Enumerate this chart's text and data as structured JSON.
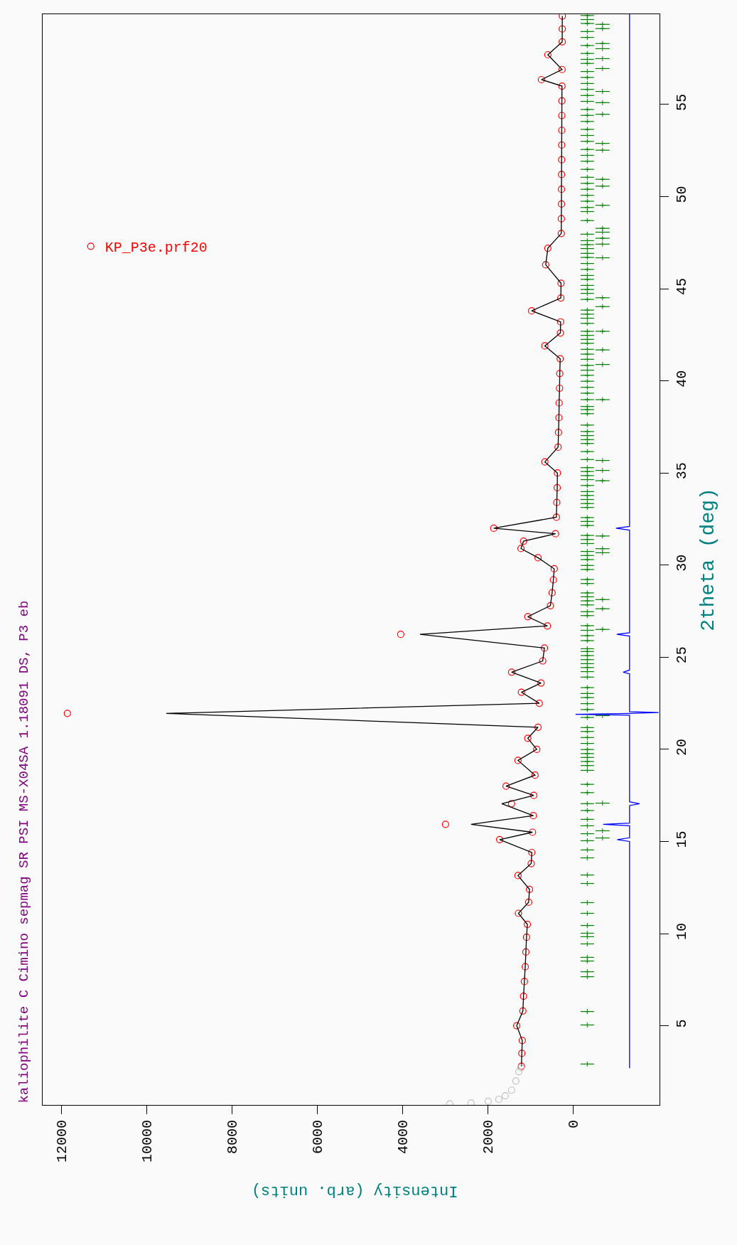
{
  "chart_data": {
    "type": "scatter",
    "title": "kaliophilite C Cimino sepmag SR PSI MS-X04SA 1.18091 DS, P3 eb",
    "xlabel": "Intensity (arb. units)",
    "ylabel": "2theta (deg)",
    "legend": "top left",
    "xlim": [
      12450,
      -2020
    ],
    "ylim": [
      0.7,
      59.9
    ],
    "xticks": [
      0,
      2000,
      4000,
      6000,
      8000,
      10000,
      12000
    ],
    "yticks": [
      5,
      10,
      15,
      20,
      25,
      30,
      35,
      40,
      45,
      50,
      55
    ],
    "series": [
      {
        "name": "KP_P3e.prf20",
        "marker": "circle",
        "color": "#ff0000",
        "x": [
          1220,
          1210,
          1200,
          1330,
          1185,
          1170,
          1150,
          1130,
          1115,
          1100,
          1080,
          1290,
          1050,
          1030,
          1300,
          990,
          975,
          1730,
          960,
          3000,
          940,
          1450,
          930,
          1580,
          900,
          1300,
          860,
          1070,
          830,
          11870,
          800,
          1220,
          760,
          1450,
          720,
          680,
          4050,
          610,
          1070,
          540,
          500,
          470,
          450,
          830,
          1230,
          1170,
          420,
          1870,
          400,
          390,
          380,
          375,
          670,
          360,
          350,
          340,
          335,
          325,
          320,
          310,
          670,
          305,
          300,
          980,
          295,
          290,
          650,
          600,
          285,
          283,
          280,
          280,
          278,
          276,
          275,
          273,
          272,
          270,
          268,
          750,
          266,
          600,
          263,
          262,
          260
        ],
        "values": [
          2.8,
          3.5,
          4.2,
          5.0,
          5.8,
          6.6,
          7.4,
          8.2,
          9.0,
          9.8,
          10.5,
          11.1,
          11.7,
          12.4,
          13.15,
          13.8,
          14.4,
          15.1,
          15.5,
          15.93,
          16.4,
          17.05,
          17.5,
          18.0,
          18.6,
          19.4,
          20.0,
          20.6,
          21.2,
          21.95,
          22.5,
          23.1,
          23.6,
          24.19,
          24.8,
          25.5,
          26.24,
          26.7,
          27.2,
          27.8,
          28.5,
          29.2,
          29.8,
          30.4,
          30.9,
          31.3,
          31.7,
          32.0,
          32.6,
          33.4,
          34.2,
          35.0,
          35.6,
          36.4,
          37.2,
          38.0,
          38.8,
          39.6,
          40.4,
          41.2,
          41.9,
          42.6,
          43.2,
          43.8,
          44.5,
          45.3,
          46.3,
          47.2,
          48.0,
          48.8,
          49.6,
          50.4,
          51.2,
          52.0,
          52.8,
          53.6,
          54.4,
          55.2,
          56.0,
          56.35,
          56.9,
          57.7,
          58.4,
          59.1,
          59.8
        ]
      },
      {
        "type": "line",
        "color": "#000000",
        "x": [
          1220,
          1210,
          1200,
          1330,
          1185,
          1170,
          1150,
          1130,
          1115,
          1100,
          1080,
          1290,
          1050,
          1030,
          1300,
          990,
          975,
          1730,
          960,
          2400,
          940,
          1680,
          930,
          1580,
          900,
          1300,
          860,
          1070,
          830,
          9550,
          800,
          1220,
          760,
          1450,
          720,
          680,
          3600,
          610,
          1070,
          540,
          500,
          470,
          450,
          830,
          1230,
          1170,
          420,
          1870,
          400,
          390,
          380,
          375,
          670,
          360,
          350,
          340,
          335,
          325,
          320,
          310,
          670,
          305,
          300,
          980,
          295,
          290,
          650,
          600,
          285,
          283,
          280,
          280,
          278,
          276,
          275,
          273,
          272,
          270,
          268,
          750,
          266,
          600,
          263,
          262,
          260
        ],
        "values": [
          2.8,
          3.5,
          4.2,
          5.0,
          5.8,
          6.6,
          7.4,
          8.2,
          9.0,
          9.8,
          10.5,
          11.1,
          11.7,
          12.4,
          13.15,
          13.8,
          14.4,
          15.1,
          15.5,
          15.93,
          16.4,
          17.05,
          17.5,
          18.0,
          18.6,
          19.4,
          20.0,
          20.6,
          21.2,
          21.95,
          22.5,
          23.1,
          23.6,
          24.19,
          24.8,
          25.5,
          26.24,
          26.7,
          27.2,
          27.8,
          28.5,
          29.2,
          29.8,
          30.4,
          30.9,
          31.3,
          31.7,
          32.0,
          32.6,
          33.4,
          34.2,
          35.0,
          35.6,
          36.4,
          37.2,
          38.0,
          38.8,
          39.6,
          40.4,
          41.2,
          41.9,
          42.6,
          43.2,
          43.8,
          44.5,
          45.3,
          46.3,
          47.2,
          48.0,
          48.8,
          49.6,
          50.4,
          51.2,
          52.0,
          52.8,
          53.6,
          54.4,
          55.2,
          56.0,
          56.35,
          56.9,
          57.7,
          58.4,
          59.1,
          59.8
        ]
      },
      {
        "type": "line",
        "color": "#0000ff",
        "x": [
          -1317,
          -1317,
          -1027,
          -1317,
          -1317,
          -697,
          -1317,
          -1317,
          -1550,
          -1317,
          -1317,
          -50,
          -1317,
          -2000,
          -1317,
          -1317,
          -1167,
          -1317,
          -1317,
          -1017,
          -1317,
          -1317,
          -1000,
          -1317,
          -1317
        ],
        "values": [
          2.7,
          15.0,
          15.1,
          15.2,
          15.85,
          15.93,
          16.0,
          16.95,
          17.05,
          17.15,
          21.85,
          21.9,
          21.95,
          22.0,
          22.05,
          24.1,
          24.19,
          24.3,
          26.15,
          26.24,
          26.33,
          31.9,
          32.0,
          32.1,
          59.9
        ]
      },
      {
        "marker": "circle",
        "color": "#c0c0c0",
        "x": [
          2900,
          2400,
          2000,
          1750,
          1600,
          1450,
          1350,
          1280,
          1230
        ],
        "values": [
          0.75,
          0.8,
          0.9,
          1.0,
          1.2,
          1.5,
          2.0,
          2.5,
          2.72
        ]
      },
      {
        "marker": "cross",
        "color": "#008000",
        "values": [
          2.92,
          5.04,
          5.77,
          7.66,
          7.93,
          8.51,
          8.71,
          9.44,
          9.83,
          10.02,
          10.44,
          11.1,
          11.68,
          12.72,
          13.18,
          14.11,
          14.54,
          15.04,
          15.42,
          15.85,
          16.2,
          16.68,
          17.05,
          17.65,
          18.1,
          18.86,
          19.12,
          19.34,
          19.56,
          19.77,
          19.99,
          20.32,
          20.64,
          20.97,
          21.18,
          21.73,
          22.16,
          22.48,
          22.81,
          23.03,
          23.35,
          23.92,
          24.22,
          24.44,
          24.65,
          24.87,
          25.09,
          25.31,
          25.46,
          25.9,
          26.17,
          26.46,
          26.71,
          27.26,
          27.47,
          27.84,
          28.06,
          28.28,
          28.49,
          29.0,
          29.22,
          29.76,
          29.98,
          30.3,
          30.52,
          30.74,
          31.17,
          31.39,
          31.61,
          32.15,
          32.37,
          32.58,
          33.13,
          33.34,
          33.56,
          33.78,
          33.99,
          34.32,
          34.64,
          34.86,
          35.08,
          35.29,
          35.73,
          36.16,
          36.6,
          36.81,
          37.03,
          37.25,
          37.6,
          38.22,
          38.44,
          38.61,
          38.98,
          39.33,
          39.65,
          39.98,
          40.3,
          40.58,
          40.84,
          41.17,
          41.45,
          41.71,
          42.04,
          42.25,
          42.47,
          42.69,
          43.12,
          43.4,
          43.62,
          43.84,
          44.42,
          44.75,
          44.96,
          45.18,
          45.51,
          45.72,
          46.05,
          46.37,
          46.7,
          46.92,
          47.18,
          47.39,
          47.61,
          47.96,
          48.7,
          49.19,
          49.41,
          49.75,
          50.07,
          50.4,
          50.72,
          51.05,
          51.48,
          51.92,
          52.24,
          52.56,
          53.0,
          53.32,
          53.65,
          54.08,
          54.41,
          54.73,
          55.17,
          55.49,
          55.82,
          56.14,
          56.47,
          56.79,
          57.23,
          57.45,
          57.77,
          58.2,
          58.64,
          58.96,
          59.4,
          59.61,
          59.83
        ],
        "x": [
          -325,
          -325,
          -325,
          -325,
          -325,
          -325,
          -325,
          -325,
          -325,
          -325,
          -325,
          -325,
          -325,
          -325,
          -325,
          -325,
          -325,
          -325,
          -325,
          -325,
          -325,
          -325,
          -325,
          -325,
          -325,
          -325,
          -325,
          -325,
          -325,
          -325,
          -325,
          -325,
          -325,
          -325,
          -325,
          -325,
          -325,
          -325,
          -325,
          -325,
          -325,
          -325,
          -325,
          -325,
          -325,
          -325,
          -325,
          -325,
          -325,
          -325,
          -325,
          -325,
          -325,
          -325,
          -325,
          -325,
          -325,
          -325,
          -325,
          -325,
          -325,
          -325,
          -325,
          -325,
          -325,
          -325,
          -325,
          -325,
          -325,
          -325,
          -325,
          -325,
          -325,
          -325,
          -325,
          -325,
          -325,
          -325,
          -325,
          -325,
          -325,
          -325,
          -325,
          -325,
          -325,
          -325,
          -325,
          -325,
          -325,
          -325,
          -325,
          -325,
          -325,
          -325,
          -325,
          -325,
          -325,
          -325,
          -325,
          -325,
          -325,
          -325,
          -325,
          -325,
          -325,
          -325,
          -325,
          -325,
          -325,
          -325,
          -325,
          -325,
          -325,
          -325,
          -325,
          -325,
          -325,
          -325,
          -325,
          -325,
          -325,
          -325,
          -325,
          -325,
          -325,
          -325,
          -325,
          -325,
          -325,
          -325,
          -325,
          -325,
          -325,
          -325,
          -325,
          -325,
          -325,
          -325,
          -325,
          -325,
          -325,
          -325,
          -325,
          -325,
          -325,
          -325,
          -325,
          -325,
          -325,
          -325,
          -325,
          -325,
          -325,
          -325,
          -325,
          -325,
          -325
        ],
        "xerrors": [
          158,
          158,
          158,
          158,
          158,
          158,
          158,
          158,
          158,
          158,
          158,
          158,
          158,
          158,
          158,
          158,
          158,
          158,
          158,
          158,
          158,
          158,
          158,
          158,
          158,
          158,
          158,
          158,
          158,
          158,
          158,
          158,
          158,
          158,
          158,
          158,
          158,
          158,
          158,
          158,
          158,
          158,
          158,
          158,
          158,
          158,
          158,
          158,
          158,
          158,
          158,
          158,
          158,
          158,
          158,
          158,
          158,
          158,
          158,
          158,
          158,
          158,
          158,
          158,
          158,
          158,
          158,
          158,
          158,
          158,
          158,
          158,
          158,
          158,
          158,
          158,
          158,
          158,
          158,
          158,
          158,
          158,
          158,
          158,
          158,
          158,
          158,
          158,
          158,
          158,
          158,
          158,
          158,
          158,
          158,
          158,
          158,
          158,
          158,
          158,
          158,
          158,
          158,
          158,
          158,
          158,
          158,
          158,
          158,
          158,
          158,
          158,
          158,
          158,
          158,
          158,
          158,
          158,
          158,
          158,
          158,
          158,
          158,
          158,
          158,
          158,
          158,
          158,
          158,
          158,
          158,
          158,
          158,
          158,
          158,
          158,
          158,
          158,
          158,
          158,
          158,
          158,
          158,
          158,
          158,
          158,
          158,
          158,
          158,
          158,
          158,
          158,
          158,
          158,
          158,
          158,
          158
        ]
      },
      {
        "marker": "cross",
        "color": "#008000",
        "values": [
          15.19,
          15.58,
          17.08,
          21.83,
          26.51,
          27.63,
          28.13,
          30.67,
          30.89,
          31.58,
          34.58,
          35.14,
          35.68,
          38.98,
          40.89,
          41.68,
          42.69,
          44.03,
          44.51,
          46.68,
          47.42,
          47.74,
          48.07,
          48.28,
          49.53,
          50.57,
          50.94,
          52.52,
          52.89,
          54.47,
          55.1,
          55.71,
          56.95,
          57.49,
          58.03,
          58.31,
          59.12,
          59.35
        ],
        "x": [
          -683,
          -683,
          -683,
          -683,
          -683,
          -683,
          -683,
          -683,
          -683,
          -683,
          -683,
          -683,
          -683,
          -683,
          -683,
          -683,
          -683,
          -683,
          -683,
          -683,
          -683,
          -683,
          -683,
          -683,
          -683,
          -683,
          -683,
          -683,
          -683,
          -683,
          -683,
          -683,
          -683,
          -683,
          -683,
          -683,
          -683,
          -683
        ],
        "xerrors": [
          167,
          167,
          167,
          167,
          167,
          167,
          167,
          167,
          167,
          167,
          167,
          167,
          167,
          167,
          167,
          167,
          167,
          167,
          167,
          167,
          167,
          167,
          167,
          167,
          167,
          167,
          167,
          167,
          167,
          167,
          167,
          167,
          167,
          167,
          167,
          167,
          167,
          167
        ]
      }
    ]
  }
}
